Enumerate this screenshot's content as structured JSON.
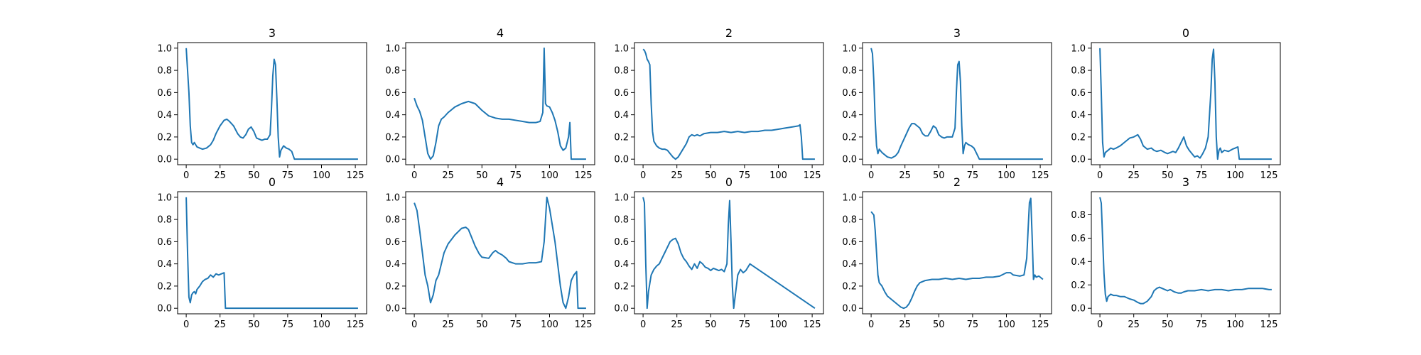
{
  "figure": {
    "line_color": "#1f77b4",
    "frame_color": "#000000"
  },
  "chart_data": [
    {
      "type": "line",
      "title": "3",
      "xlim": [
        -6.35,
        133.35
      ],
      "ylim": [
        -0.05,
        1.05
      ],
      "xticks": [
        0,
        25,
        50,
        75,
        100,
        125
      ],
      "yticks": [
        0.0,
        0.2,
        0.4,
        0.6,
        0.8,
        1.0
      ],
      "x": [
        0,
        2,
        3,
        4,
        5,
        6,
        8,
        10,
        12,
        15,
        18,
        20,
        22,
        25,
        28,
        30,
        32,
        35,
        38,
        40,
        42,
        44,
        46,
        48,
        50,
        52,
        54,
        56,
        58,
        60,
        62,
        63,
        64,
        65,
        66,
        67,
        68,
        69,
        70,
        72,
        74,
        76,
        78,
        80,
        127
      ],
      "y": [
        1.0,
        0.6,
        0.3,
        0.15,
        0.13,
        0.15,
        0.11,
        0.1,
        0.09,
        0.1,
        0.13,
        0.17,
        0.23,
        0.3,
        0.35,
        0.36,
        0.34,
        0.3,
        0.23,
        0.2,
        0.19,
        0.22,
        0.27,
        0.29,
        0.25,
        0.19,
        0.18,
        0.17,
        0.18,
        0.18,
        0.22,
        0.45,
        0.75,
        0.9,
        0.85,
        0.55,
        0.2,
        0.02,
        0.08,
        0.12,
        0.1,
        0.09,
        0.07,
        0.0,
        0.0
      ]
    },
    {
      "type": "line",
      "title": "4",
      "xlim": [
        -6.35,
        133.35
      ],
      "ylim": [
        -0.05,
        1.05
      ],
      "xticks": [
        0,
        25,
        50,
        75,
        100,
        125
      ],
      "yticks": [
        0.0,
        0.2,
        0.4,
        0.6,
        0.8,
        1.0
      ],
      "x": [
        0,
        2,
        4,
        6,
        8,
        10,
        12,
        14,
        16,
        18,
        20,
        22,
        25,
        30,
        35,
        40,
        45,
        50,
        55,
        60,
        65,
        70,
        75,
        80,
        85,
        90,
        93,
        95,
        96,
        97,
        98,
        100,
        102,
        104,
        106,
        108,
        110,
        112,
        114,
        115,
        116,
        118,
        120,
        127
      ],
      "y": [
        0.55,
        0.48,
        0.43,
        0.35,
        0.2,
        0.05,
        0.0,
        0.03,
        0.15,
        0.3,
        0.36,
        0.38,
        0.42,
        0.47,
        0.5,
        0.52,
        0.5,
        0.44,
        0.39,
        0.37,
        0.36,
        0.36,
        0.35,
        0.34,
        0.33,
        0.33,
        0.34,
        0.42,
        1.0,
        0.5,
        0.48,
        0.47,
        0.42,
        0.35,
        0.25,
        0.12,
        0.08,
        0.1,
        0.2,
        0.33,
        0.0,
        0.0,
        0.0,
        0.0
      ]
    },
    {
      "type": "line",
      "title": "2",
      "xlim": [
        -6.35,
        133.35
      ],
      "ylim": [
        -0.05,
        1.05
      ],
      "xticks": [
        0,
        25,
        50,
        75,
        100,
        125
      ],
      "yticks": [
        0.0,
        0.2,
        0.4,
        0.6,
        0.8,
        1.0
      ],
      "x": [
        0,
        1,
        2,
        3,
        4,
        5,
        6,
        7,
        8,
        9,
        10,
        12,
        14,
        16,
        18,
        20,
        22,
        24,
        26,
        28,
        30,
        32,
        34,
        36,
        38,
        40,
        42,
        45,
        50,
        55,
        60,
        65,
        70,
        75,
        80,
        85,
        90,
        95,
        100,
        105,
        110,
        115,
        116,
        117,
        118,
        120,
        127
      ],
      "y": [
        0.99,
        0.98,
        0.95,
        0.9,
        0.88,
        0.85,
        0.5,
        0.25,
        0.16,
        0.14,
        0.12,
        0.1,
        0.09,
        0.09,
        0.08,
        0.05,
        0.02,
        0.0,
        0.02,
        0.06,
        0.1,
        0.14,
        0.2,
        0.22,
        0.21,
        0.22,
        0.21,
        0.23,
        0.24,
        0.24,
        0.25,
        0.24,
        0.25,
        0.24,
        0.25,
        0.25,
        0.26,
        0.26,
        0.27,
        0.28,
        0.29,
        0.3,
        0.31,
        0.2,
        0.0,
        0.0,
        0.0
      ]
    },
    {
      "type": "line",
      "title": "3",
      "xlim": [
        -6.35,
        133.35
      ],
      "ylim": [
        -0.05,
        1.05
      ],
      "xticks": [
        0,
        25,
        50,
        75,
        100,
        125
      ],
      "yticks": [
        0.0,
        0.2,
        0.4,
        0.6,
        0.8,
        1.0
      ],
      "x": [
        0,
        1,
        2,
        3,
        4,
        5,
        6,
        8,
        10,
        12,
        15,
        18,
        20,
        22,
        25,
        28,
        30,
        32,
        34,
        36,
        38,
        40,
        42,
        44,
        46,
        48,
        50,
        52,
        54,
        56,
        58,
        60,
        62,
        63,
        64,
        65,
        66,
        67,
        68,
        69,
        70,
        72,
        74,
        76,
        78,
        80,
        127
      ],
      "y": [
        1.0,
        0.95,
        0.7,
        0.35,
        0.12,
        0.05,
        0.09,
        0.06,
        0.04,
        0.02,
        0.01,
        0.03,
        0.06,
        0.12,
        0.2,
        0.28,
        0.32,
        0.32,
        0.3,
        0.28,
        0.23,
        0.21,
        0.21,
        0.25,
        0.3,
        0.28,
        0.22,
        0.2,
        0.19,
        0.2,
        0.2,
        0.2,
        0.28,
        0.6,
        0.85,
        0.88,
        0.7,
        0.3,
        0.05,
        0.12,
        0.15,
        0.13,
        0.12,
        0.1,
        0.05,
        0.0,
        0.0
      ]
    },
    {
      "type": "line",
      "title": "0",
      "xlim": [
        -6.35,
        133.35
      ],
      "ylim": [
        -0.05,
        1.05
      ],
      "xticks": [
        0,
        25,
        50,
        75,
        100,
        125
      ],
      "yticks": [
        0.0,
        0.2,
        0.4,
        0.6,
        0.8,
        1.0
      ],
      "x": [
        0,
        1,
        2,
        3,
        4,
        6,
        8,
        10,
        12,
        15,
        18,
        20,
        22,
        25,
        28,
        30,
        32,
        35,
        38,
        40,
        42,
        45,
        48,
        50,
        52,
        54,
        56,
        58,
        60,
        62,
        64,
        66,
        68,
        70,
        72,
        74,
        76,
        78,
        80,
        82,
        83,
        84,
        85,
        86,
        87,
        88,
        89,
        90,
        92,
        95,
        98,
        100,
        102,
        103,
        127
      ],
      "y": [
        1.0,
        0.6,
        0.15,
        0.02,
        0.06,
        0.08,
        0.1,
        0.09,
        0.1,
        0.12,
        0.15,
        0.17,
        0.19,
        0.2,
        0.22,
        0.18,
        0.12,
        0.09,
        0.1,
        0.08,
        0.07,
        0.08,
        0.06,
        0.05,
        0.06,
        0.07,
        0.06,
        0.1,
        0.15,
        0.2,
        0.12,
        0.08,
        0.05,
        0.02,
        0.03,
        0.01,
        0.05,
        0.1,
        0.2,
        0.6,
        0.9,
        0.99,
        0.7,
        0.2,
        0.0,
        0.08,
        0.1,
        0.06,
        0.08,
        0.07,
        0.09,
        0.1,
        0.11,
        0.0,
        0.0
      ]
    },
    {
      "type": "line",
      "title": "0",
      "xlim": [
        -6.35,
        133.35
      ],
      "ylim": [
        -0.05,
        1.05
      ],
      "xticks": [
        0,
        25,
        50,
        75,
        100,
        125
      ],
      "yticks": [
        0.0,
        0.2,
        0.4,
        0.6,
        0.8,
        1.0
      ],
      "x": [
        0,
        1,
        2,
        3,
        4,
        5,
        6,
        7,
        8,
        10,
        12,
        14,
        16,
        18,
        20,
        22,
        24,
        26,
        28,
        29,
        127
      ],
      "y": [
        1.0,
        0.5,
        0.1,
        0.05,
        0.12,
        0.14,
        0.15,
        0.13,
        0.17,
        0.2,
        0.24,
        0.26,
        0.27,
        0.3,
        0.28,
        0.31,
        0.3,
        0.31,
        0.32,
        0.0,
        0.0
      ]
    },
    {
      "type": "line",
      "title": "4",
      "xlim": [
        -6.35,
        133.35
      ],
      "ylim": [
        -0.05,
        1.05
      ],
      "xticks": [
        0,
        25,
        50,
        75,
        100,
        125
      ],
      "yticks": [
        0.0,
        0.2,
        0.4,
        0.6,
        0.8,
        1.0
      ],
      "x": [
        0,
        2,
        4,
        6,
        8,
        10,
        12,
        14,
        16,
        18,
        20,
        22,
        25,
        30,
        35,
        38,
        40,
        42,
        45,
        48,
        50,
        55,
        58,
        60,
        62,
        65,
        68,
        70,
        75,
        80,
        85,
        90,
        94,
        96,
        98,
        100,
        102,
        104,
        106,
        108,
        110,
        112,
        114,
        116,
        118,
        120,
        121,
        122,
        125,
        127
      ],
      "y": [
        0.95,
        0.88,
        0.7,
        0.5,
        0.3,
        0.2,
        0.05,
        0.12,
        0.25,
        0.3,
        0.4,
        0.5,
        0.58,
        0.66,
        0.72,
        0.73,
        0.71,
        0.65,
        0.56,
        0.49,
        0.46,
        0.45,
        0.5,
        0.52,
        0.5,
        0.48,
        0.45,
        0.42,
        0.4,
        0.4,
        0.41,
        0.41,
        0.42,
        0.6,
        1.0,
        0.9,
        0.75,
        0.6,
        0.4,
        0.2,
        0.05,
        0.0,
        0.1,
        0.25,
        0.3,
        0.33,
        0.0,
        0.0,
        0.0,
        0.0
      ]
    },
    {
      "type": "line",
      "title": "0",
      "xlim": [
        -6.35,
        133.35
      ],
      "ylim": [
        -0.05,
        1.05
      ],
      "xticks": [
        0,
        25,
        50,
        75,
        100,
        125
      ],
      "yticks": [
        0.0,
        0.2,
        0.4,
        0.6,
        0.8,
        1.0
      ],
      "x": [
        0,
        1,
        2,
        3,
        4,
        6,
        8,
        10,
        12,
        14,
        16,
        18,
        20,
        22,
        24,
        26,
        28,
        30,
        32,
        34,
        36,
        38,
        40,
        42,
        44,
        46,
        48,
        50,
        52,
        54,
        56,
        58,
        60,
        62,
        63,
        64,
        65,
        66,
        67,
        68,
        70,
        72,
        74,
        76,
        78,
        79,
        127
      ],
      "y": [
        1.0,
        0.95,
        0.4,
        0.0,
        0.15,
        0.3,
        0.35,
        0.38,
        0.4,
        0.45,
        0.5,
        0.55,
        0.6,
        0.62,
        0.63,
        0.58,
        0.5,
        0.45,
        0.42,
        0.38,
        0.35,
        0.4,
        0.36,
        0.42,
        0.4,
        0.37,
        0.36,
        0.34,
        0.36,
        0.35,
        0.34,
        0.35,
        0.33,
        0.4,
        0.75,
        0.97,
        0.6,
        0.2,
        0.0,
        0.1,
        0.3,
        0.35,
        0.32,
        0.34,
        0.38,
        0.4,
        0.0
      ]
    },
    {
      "type": "line",
      "title": "2",
      "xlim": [
        -6.35,
        133.35
      ],
      "ylim": [
        -0.05,
        1.05
      ],
      "xticks": [
        0,
        25,
        50,
        75,
        100,
        125
      ],
      "yticks": [
        0.0,
        0.2,
        0.4,
        0.6,
        0.8,
        1.0
      ],
      "x": [
        0,
        2,
        3,
        4,
        5,
        6,
        8,
        10,
        12,
        14,
        16,
        18,
        20,
        22,
        24,
        26,
        28,
        30,
        32,
        34,
        36,
        40,
        45,
        50,
        55,
        60,
        65,
        70,
        75,
        80,
        85,
        90,
        95,
        100,
        103,
        105,
        110,
        113,
        115,
        116,
        117,
        118,
        119,
        120,
        121,
        122,
        124,
        127
      ],
      "y": [
        0.87,
        0.84,
        0.7,
        0.5,
        0.3,
        0.23,
        0.2,
        0.15,
        0.11,
        0.09,
        0.07,
        0.05,
        0.03,
        0.01,
        0.0,
        0.01,
        0.04,
        0.09,
        0.15,
        0.2,
        0.23,
        0.25,
        0.26,
        0.26,
        0.27,
        0.26,
        0.27,
        0.26,
        0.27,
        0.27,
        0.28,
        0.28,
        0.29,
        0.32,
        0.32,
        0.3,
        0.29,
        0.3,
        0.45,
        0.7,
        0.95,
        0.99,
        0.65,
        0.26,
        0.3,
        0.28,
        0.29,
        0.26
      ]
    },
    {
      "type": "line",
      "title": "3",
      "xlim": [
        -6.35,
        133.35
      ],
      "ylim": [
        -0.0475,
        0.9975
      ],
      "xticks": [
        0,
        25,
        50,
        75,
        100,
        125
      ],
      "yticks": [
        0.0,
        0.2,
        0.4,
        0.6,
        0.8
      ],
      "x": [
        0,
        1,
        2,
        3,
        4,
        5,
        6,
        8,
        10,
        12,
        15,
        18,
        20,
        22,
        25,
        28,
        30,
        32,
        35,
        38,
        40,
        42,
        44,
        46,
        48,
        50,
        52,
        55,
        58,
        60,
        62,
        65,
        70,
        75,
        80,
        85,
        90,
        95,
        100,
        105,
        110,
        115,
        120,
        125,
        127
      ],
      "y": [
        0.95,
        0.9,
        0.6,
        0.3,
        0.12,
        0.06,
        0.1,
        0.12,
        0.11,
        0.11,
        0.1,
        0.1,
        0.09,
        0.08,
        0.07,
        0.05,
        0.04,
        0.04,
        0.06,
        0.1,
        0.15,
        0.17,
        0.18,
        0.17,
        0.16,
        0.15,
        0.16,
        0.14,
        0.13,
        0.13,
        0.14,
        0.15,
        0.15,
        0.16,
        0.15,
        0.16,
        0.16,
        0.15,
        0.16,
        0.16,
        0.17,
        0.17,
        0.17,
        0.16,
        0.16
      ]
    }
  ]
}
